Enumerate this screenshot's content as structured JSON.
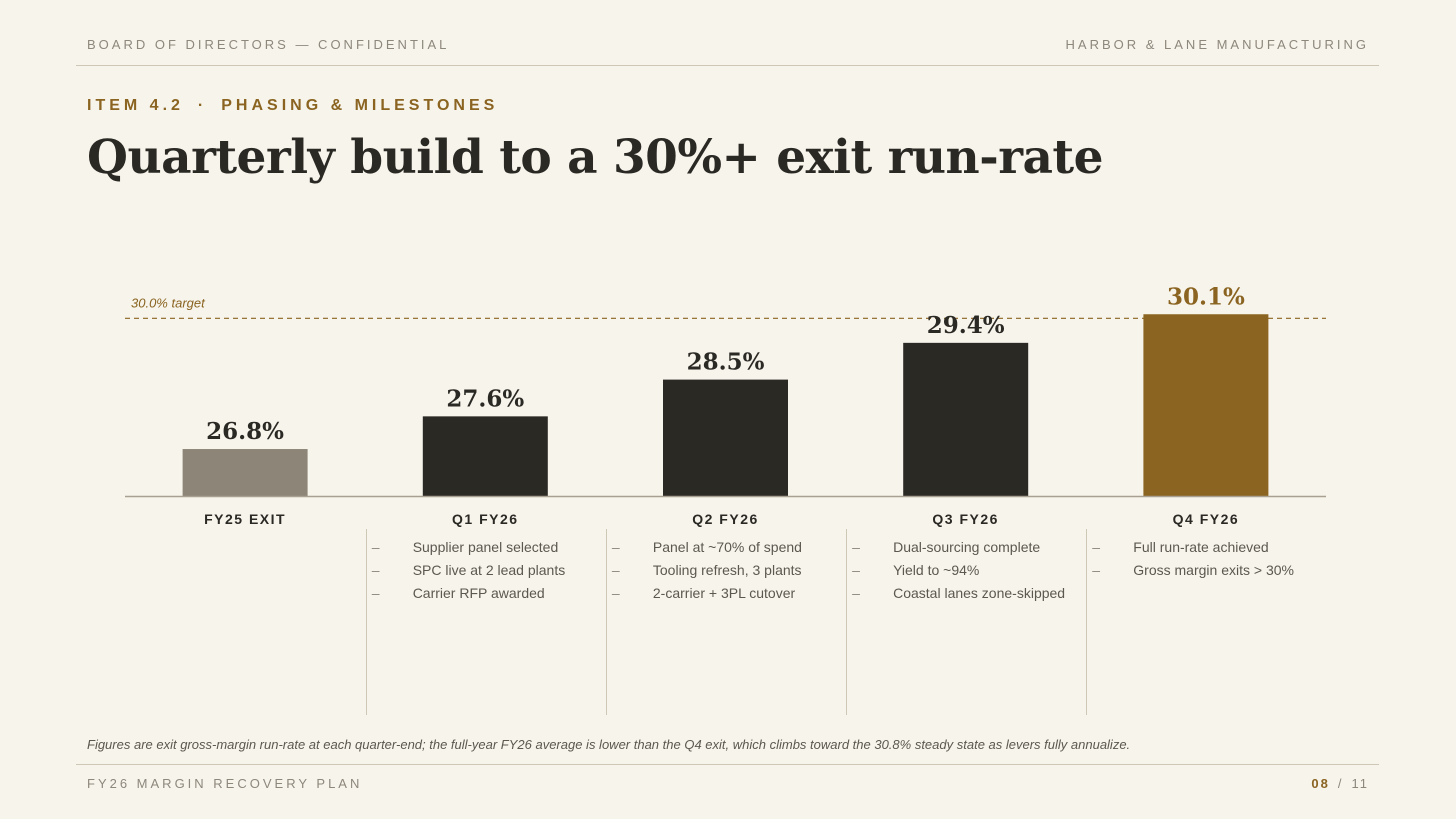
{
  "header": {
    "left": "BOARD OF DIRECTORS — CONFIDENTIAL",
    "right": "HARBOR & LANE MANUFACTURING"
  },
  "kicker": {
    "item": "ITEM 4.2",
    "separator": "·",
    "topic": "PHASING & MILESTONES"
  },
  "title": "Quarterly build to a 30%+ exit run-rate",
  "colors": {
    "background": "#f7f4ec",
    "baseline_bar": "#8c8578",
    "standard_bar": "#2b2924",
    "target_bar": "#8a6420",
    "accent": "#8a6420",
    "text_dark": "#2b2924",
    "text_muted": "#8d877c"
  },
  "chart_data": {
    "type": "bar",
    "categories": [
      "FY25 EXIT",
      "Q1 FY26",
      "Q2 FY26",
      "Q3 FY26",
      "Q4 FY26"
    ],
    "values": [
      26.8,
      27.6,
      28.5,
      29.4,
      30.1
    ],
    "data_labels": [
      "26.8%",
      "27.6%",
      "28.5%",
      "29.4%",
      "30.1%"
    ],
    "bar_styles": [
      "baseline",
      "standard",
      "standard",
      "standard",
      "target"
    ],
    "reference_line": {
      "value": 30.0,
      "label": "30.0% target",
      "style": "dashed"
    },
    "ylim": [
      25.65,
      30.4
    ],
    "grid": false
  },
  "milestones": [
    {
      "items": []
    },
    {
      "items": [
        "Supplier panel selected",
        "SPC live at 2 lead plants",
        "Carrier RFP awarded"
      ]
    },
    {
      "items": [
        "Panel at ~70% of spend",
        "Tooling refresh, 3 plants",
        "2-carrier + 3PL cutover"
      ]
    },
    {
      "items": [
        "Dual-sourcing complete",
        "Yield to ~94%",
        "Coastal lanes zone-skipped"
      ]
    },
    {
      "items": [
        "Full run-rate achieved",
        "Gross margin exits > 30%"
      ]
    }
  ],
  "bullet_glyph": "–",
  "footnote": "Figures are exit gross-margin run-rate at each quarter-end; the full-year FY26 average is lower than the Q4 exit, which climbs toward the 30.8% steady state as levers fully annualize.",
  "footer": {
    "left": "FY26 MARGIN RECOVERY PLAN",
    "page_current": "08",
    "page_separator": "/",
    "page_total": "11"
  }
}
